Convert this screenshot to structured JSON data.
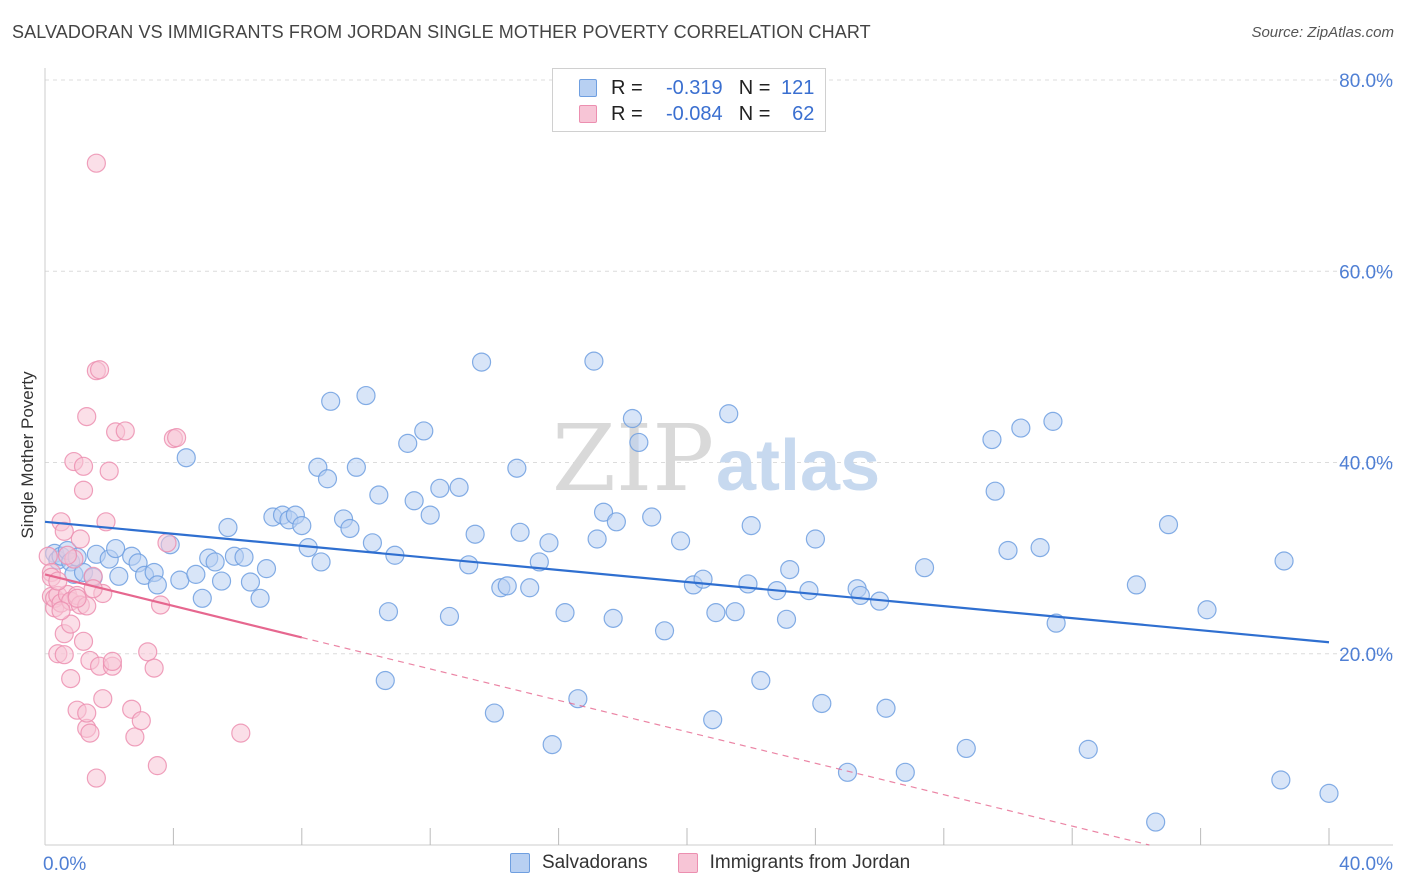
{
  "header": {
    "title": "SALVADORAN VS IMMIGRANTS FROM JORDAN SINGLE MOTHER POVERTY CORRELATION CHART",
    "source": "Source: ZipAtlas.com"
  },
  "watermark": {
    "zip": "ZIP",
    "atlas": "atlas"
  },
  "legend": {
    "rows": [
      {
        "r_label": "R =",
        "r_value": "-0.319",
        "n_label": "N =",
        "n_value": "121",
        "color": "#6f9fe0",
        "fill": "#b8d0f2"
      },
      {
        "r_label": "R =",
        "r_value": "-0.084",
        "n_label": "N =",
        "n_value": "62",
        "color": "#ec8fb0",
        "fill": "#f7c5d6"
      }
    ]
  },
  "bottom_legend": {
    "items": [
      {
        "label": "Salvadorans",
        "color": "#6f9fe0",
        "fill": "#b8d0f2"
      },
      {
        "label": "Immigrants from Jordan",
        "color": "#ec8fb0",
        "fill": "#f7c5d6"
      }
    ]
  },
  "chart_data": {
    "type": "scatter",
    "title": "SALVADORAN VS IMMIGRANTS FROM JORDAN SINGLE MOTHER POVERTY CORRELATION CHART",
    "xlabel": "",
    "ylabel": "Single Mother Poverty",
    "xlim": [
      0,
      40
    ],
    "ylim": [
      0,
      80
    ],
    "x_tick_labels": [
      "0.0%",
      "40.0%"
    ],
    "y_tick_labels": [
      "20.0%",
      "40.0%",
      "60.0%",
      "80.0%"
    ],
    "y_ticks": [
      20,
      40,
      60,
      80
    ],
    "x_minor_ticks": [
      4,
      8,
      12,
      16,
      20,
      24,
      28,
      32,
      36,
      40
    ],
    "grid": true,
    "legend_position": "top-center",
    "series": [
      {
        "name": "Salvadorans",
        "color": "#6f9fe0",
        "fill": "#b8d0f2",
        "trend": {
          "x": [
            0,
            40
          ],
          "y": [
            33.8,
            21.2
          ]
        },
        "points": [
          [
            0.3,
            30.5
          ],
          [
            0.4,
            29.8
          ],
          [
            0.5,
            30.2
          ],
          [
            0.7,
            30.8
          ],
          [
            0.8,
            29.6
          ],
          [
            0.9,
            28.3
          ],
          [
            1.0,
            30.1
          ],
          [
            1.2,
            28.5
          ],
          [
            1.5,
            28.0
          ],
          [
            1.6,
            30.4
          ],
          [
            2.0,
            29.9
          ],
          [
            2.2,
            31.0
          ],
          [
            2.3,
            28.1
          ],
          [
            2.7,
            30.2
          ],
          [
            2.9,
            29.5
          ],
          [
            3.1,
            28.2
          ],
          [
            3.4,
            28.5
          ],
          [
            3.5,
            27.2
          ],
          [
            3.9,
            31.4
          ],
          [
            4.2,
            27.7
          ],
          [
            4.4,
            40.5
          ],
          [
            4.7,
            28.3
          ],
          [
            4.9,
            25.8
          ],
          [
            5.1,
            30.0
          ],
          [
            5.3,
            29.6
          ],
          [
            5.5,
            27.6
          ],
          [
            5.7,
            33.2
          ],
          [
            5.9,
            30.2
          ],
          [
            6.2,
            30.1
          ],
          [
            6.4,
            27.5
          ],
          [
            6.7,
            25.8
          ],
          [
            6.9,
            28.9
          ],
          [
            7.1,
            34.3
          ],
          [
            7.4,
            34.5
          ],
          [
            7.6,
            34.0
          ],
          [
            7.8,
            34.5
          ],
          [
            8.0,
            33.4
          ],
          [
            8.2,
            31.1
          ],
          [
            8.5,
            39.5
          ],
          [
            8.6,
            29.6
          ],
          [
            8.8,
            38.3
          ],
          [
            8.9,
            46.4
          ],
          [
            9.3,
            34.1
          ],
          [
            9.5,
            33.1
          ],
          [
            9.7,
            39.5
          ],
          [
            10.0,
            47.0
          ],
          [
            10.2,
            31.6
          ],
          [
            10.4,
            36.6
          ],
          [
            10.6,
            17.2
          ],
          [
            10.7,
            24.4
          ],
          [
            10.9,
            30.3
          ],
          [
            11.3,
            42.0
          ],
          [
            11.5,
            36.0
          ],
          [
            11.8,
            43.3
          ],
          [
            12.0,
            34.5
          ],
          [
            12.3,
            37.3
          ],
          [
            12.6,
            23.9
          ],
          [
            12.9,
            37.4
          ],
          [
            13.2,
            29.3
          ],
          [
            13.4,
            32.5
          ],
          [
            13.6,
            50.5
          ],
          [
            14.0,
            13.8
          ],
          [
            14.2,
            26.9
          ],
          [
            14.4,
            27.1
          ],
          [
            14.7,
            39.4
          ],
          [
            14.8,
            32.7
          ],
          [
            15.1,
            26.9
          ],
          [
            15.4,
            29.6
          ],
          [
            15.7,
            31.6
          ],
          [
            15.8,
            10.5
          ],
          [
            16.2,
            24.3
          ],
          [
            16.6,
            15.3
          ],
          [
            17.1,
            50.6
          ],
          [
            17.2,
            32.0
          ],
          [
            17.4,
            34.8
          ],
          [
            17.7,
            23.7
          ],
          [
            17.8,
            33.8
          ],
          [
            18.3,
            44.6
          ],
          [
            18.5,
            42.1
          ],
          [
            18.9,
            34.3
          ],
          [
            19.3,
            22.4
          ],
          [
            19.8,
            31.8
          ],
          [
            20.2,
            27.2
          ],
          [
            20.5,
            27.8
          ],
          [
            20.8,
            13.1
          ],
          [
            20.9,
            24.3
          ],
          [
            21.3,
            45.1
          ],
          [
            21.5,
            24.4
          ],
          [
            21.9,
            27.3
          ],
          [
            22.0,
            33.4
          ],
          [
            22.3,
            17.2
          ],
          [
            22.8,
            26.6
          ],
          [
            23.1,
            23.6
          ],
          [
            23.2,
            28.8
          ],
          [
            23.8,
            26.6
          ],
          [
            24.0,
            32.0
          ],
          [
            24.2,
            14.8
          ],
          [
            25.0,
            7.6
          ],
          [
            25.3,
            26.8
          ],
          [
            25.4,
            26.1
          ],
          [
            26.0,
            25.5
          ],
          [
            26.2,
            14.3
          ],
          [
            26.8,
            7.6
          ],
          [
            27.4,
            29.0
          ],
          [
            28.7,
            10.1
          ],
          [
            29.5,
            42.4
          ],
          [
            29.6,
            37.0
          ],
          [
            30.0,
            30.8
          ],
          [
            30.4,
            43.6
          ],
          [
            31.0,
            31.1
          ],
          [
            31.4,
            44.3
          ],
          [
            31.5,
            23.2
          ],
          [
            32.5,
            10.0
          ],
          [
            34.0,
            27.2
          ],
          [
            34.6,
            2.4
          ],
          [
            35.0,
            33.5
          ],
          [
            36.2,
            24.6
          ],
          [
            38.5,
            6.8
          ],
          [
            38.6,
            29.7
          ],
          [
            40.0,
            5.4
          ]
        ]
      },
      {
        "name": "Immigrants from Jordan",
        "color": "#ec8fb0",
        "fill": "#f7c5d6",
        "trend": {
          "x": [
            0,
            8
          ],
          "y": [
            28.3,
            21.7
          ]
        },
        "trend_extended": {
          "x": [
            8,
            40
          ],
          "y": [
            21.7,
            -4.6
          ]
        },
        "points": [
          [
            0.1,
            30.2
          ],
          [
            0.2,
            28.5
          ],
          [
            0.2,
            26.0
          ],
          [
            0.3,
            24.8
          ],
          [
            0.3,
            25.8
          ],
          [
            0.4,
            26.1
          ],
          [
            0.4,
            20.0
          ],
          [
            0.5,
            33.8
          ],
          [
            0.5,
            25.3
          ],
          [
            0.6,
            22.1
          ],
          [
            0.6,
            32.8
          ],
          [
            0.6,
            19.9
          ],
          [
            0.7,
            26.2
          ],
          [
            0.8,
            17.4
          ],
          [
            0.8,
            25.5
          ],
          [
            0.8,
            23.1
          ],
          [
            0.9,
            29.9
          ],
          [
            0.9,
            40.1
          ],
          [
            1.0,
            14.1
          ],
          [
            1.0,
            26.1
          ],
          [
            1.1,
            32.0
          ],
          [
            1.1,
            25.1
          ],
          [
            1.2,
            37.1
          ],
          [
            1.2,
            39.6
          ],
          [
            1.2,
            21.3
          ],
          [
            1.3,
            12.2
          ],
          [
            1.3,
            44.8
          ],
          [
            1.3,
            25.0
          ],
          [
            1.3,
            13.8
          ],
          [
            1.4,
            11.7
          ],
          [
            1.4,
            19.3
          ],
          [
            1.5,
            28.1
          ],
          [
            1.6,
            71.3
          ],
          [
            1.6,
            49.6
          ],
          [
            1.6,
            7.0
          ],
          [
            1.7,
            49.7
          ],
          [
            1.7,
            18.7
          ],
          [
            1.8,
            26.3
          ],
          [
            1.8,
            15.3
          ],
          [
            1.9,
            33.8
          ],
          [
            2.0,
            39.1
          ],
          [
            2.1,
            18.7
          ],
          [
            2.1,
            19.2
          ],
          [
            2.2,
            43.2
          ],
          [
            2.5,
            43.3
          ],
          [
            2.7,
            14.2
          ],
          [
            2.8,
            11.3
          ],
          [
            3.0,
            13.0
          ],
          [
            3.2,
            20.2
          ],
          [
            3.4,
            18.5
          ],
          [
            3.5,
            8.3
          ],
          [
            3.6,
            25.1
          ],
          [
            3.8,
            31.6
          ],
          [
            4.0,
            42.5
          ],
          [
            4.1,
            42.6
          ],
          [
            6.1,
            11.7
          ],
          [
            0.2,
            28.0
          ],
          [
            0.5,
            24.5
          ],
          [
            1.0,
            25.8
          ],
          [
            0.7,
            30.3
          ],
          [
            1.5,
            26.8
          ],
          [
            0.4,
            27.6
          ]
        ]
      }
    ]
  }
}
